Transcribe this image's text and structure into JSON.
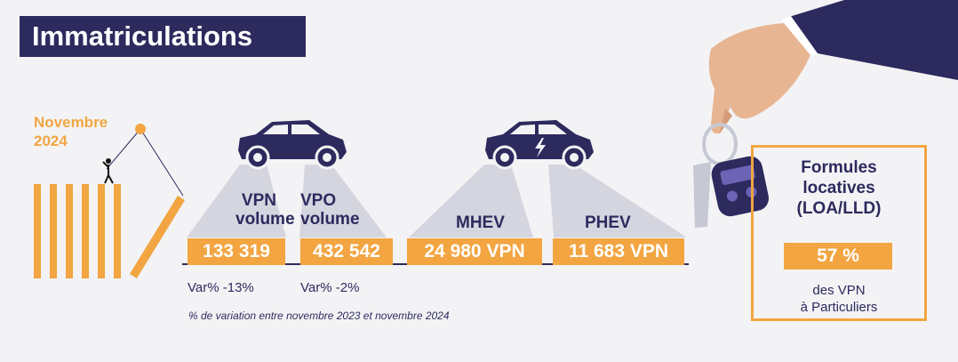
{
  "header": {
    "title": "Immatriculations"
  },
  "period": {
    "line1": "Novembre",
    "line2": "2024"
  },
  "metrics": [
    {
      "label_line1": "VPN",
      "label_line2": "volume",
      "value": "133 319",
      "variation": "Var% -13%"
    },
    {
      "label_line1": "VPO",
      "label_line2": "volume",
      "value": "432 542",
      "variation": "Var% -2%"
    },
    {
      "label": "MHEV",
      "value": "24 980 VPN"
    },
    {
      "label": "PHEV",
      "value": "11 683 VPN"
    }
  ],
  "footnote": "% de variation entre novembre 2023 et novembre 2024",
  "side_card": {
    "title_line1": "Formules",
    "title_line2": "locatives",
    "title_line3": "(LOA/LLD)",
    "value": "57 %",
    "sub_line1": "des VPN",
    "sub_line2": "à Particuliers"
  },
  "colors": {
    "navy": "#2d2a5e",
    "orange": "#f2a541",
    "grey_beam": "#d5d5e0",
    "background": "#f3f3f5"
  },
  "icons": [
    "domino-illustration",
    "car-icon",
    "electric-car-icon",
    "hand-with-car-key-illustration"
  ]
}
